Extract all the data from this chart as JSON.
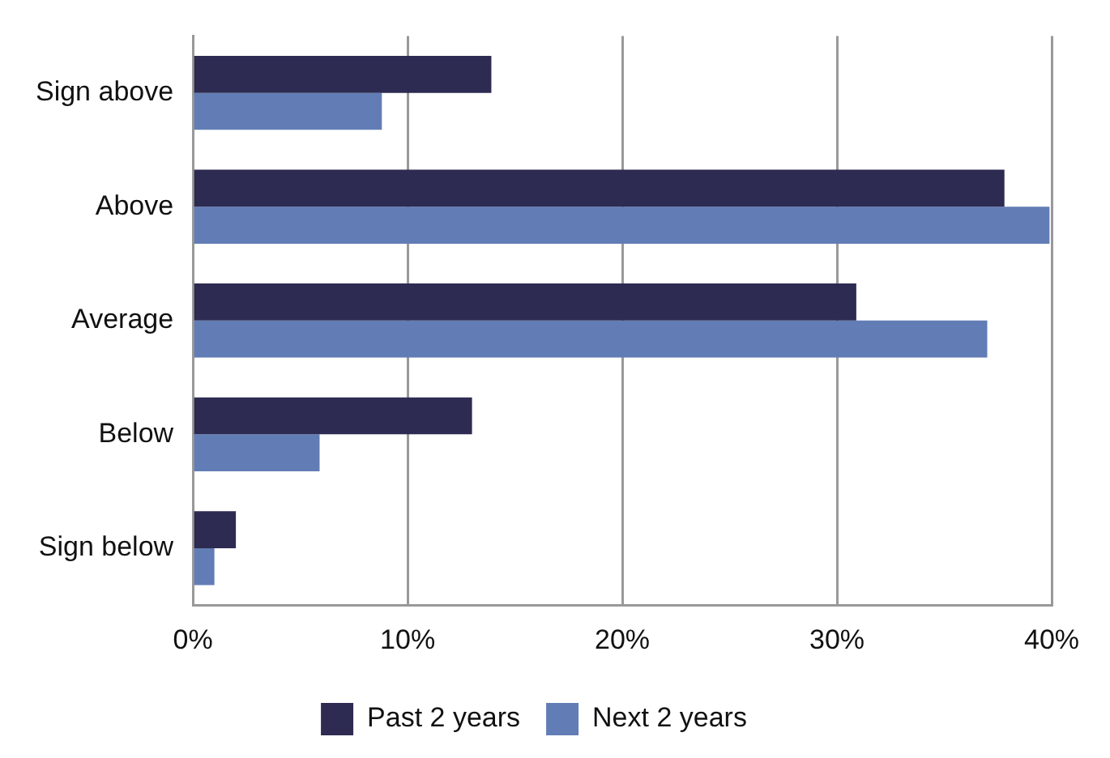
{
  "chart_data": {
    "type": "bar",
    "orientation": "horizontal",
    "categories": [
      "Sign above",
      "Above",
      "Average",
      "Below",
      "Sign below"
    ],
    "series": [
      {
        "name": "Past 2 years",
        "color": "#2d2b52",
        "values": [
          13.9,
          37.8,
          30.9,
          13.0,
          2.0
        ]
      },
      {
        "name": "Next 2 years",
        "color": "#627db5",
        "values": [
          8.8,
          39.9,
          37.0,
          5.9,
          1.0
        ]
      }
    ],
    "xlim": [
      0,
      40
    ],
    "xticks": [
      {
        "value": 0,
        "label": "0%"
      },
      {
        "value": 10,
        "label": "10%"
      },
      {
        "value": 20,
        "label": "20%"
      },
      {
        "value": 30,
        "label": "30%"
      },
      {
        "value": 40,
        "label": "40%"
      }
    ],
    "grid": "x",
    "legend": "bottom"
  }
}
